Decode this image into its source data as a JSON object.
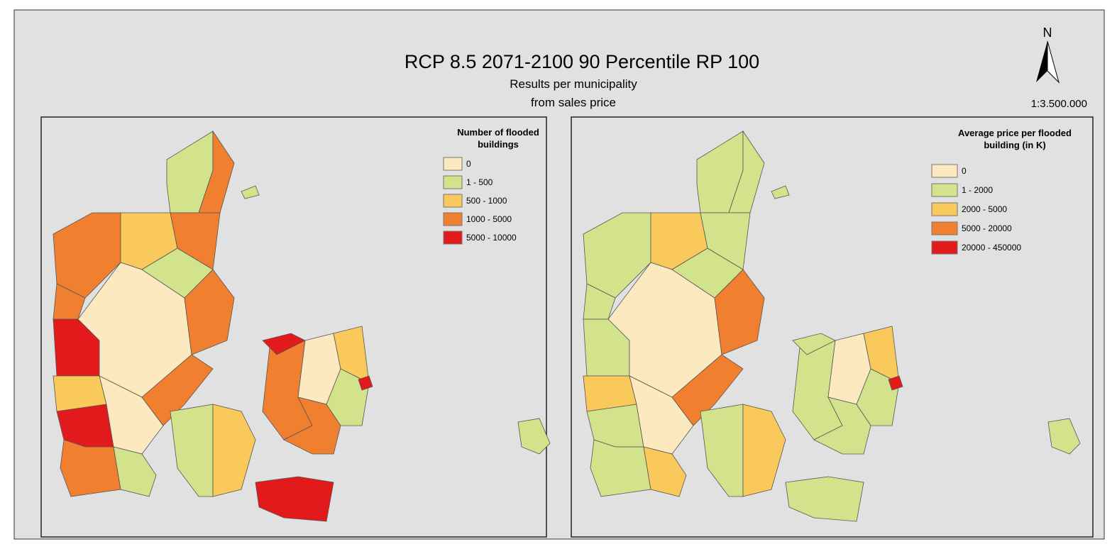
{
  "title": "RCP 8.5 2071-2100 90 Percentile RP 100",
  "subtitle": [
    "Results per municipality",
    "from sales price"
  ],
  "north": "N",
  "scale": "1:3.500.000",
  "maps": [
    {
      "legend_title": [
        "Number of flooded",
        "buildings"
      ],
      "legend": [
        {
          "label": "0",
          "color": "#fde9c0"
        },
        {
          "label": "1 - 500",
          "color": "#d2e38c"
        },
        {
          "label": "500 - 1000",
          "color": "#f9c95c"
        },
        {
          "label": "1000 - 5000",
          "color": "#f0802f"
        },
        {
          "label": "5000 - 10000",
          "color": "#e31a1c"
        }
      ]
    },
    {
      "legend_title": [
        "Average price per flooded",
        "building (in K)"
      ],
      "legend": [
        {
          "label": "0",
          "color": "#fde9c0"
        },
        {
          "label": "1 - 2000",
          "color": "#d2e38c"
        },
        {
          "label": "2000 - 5000",
          "color": "#f9c95c"
        },
        {
          "label": "5000 - 20000",
          "color": "#f0802f"
        },
        {
          "label": "20000 - 450000",
          "color": "#e31a1c"
        }
      ]
    }
  ]
}
